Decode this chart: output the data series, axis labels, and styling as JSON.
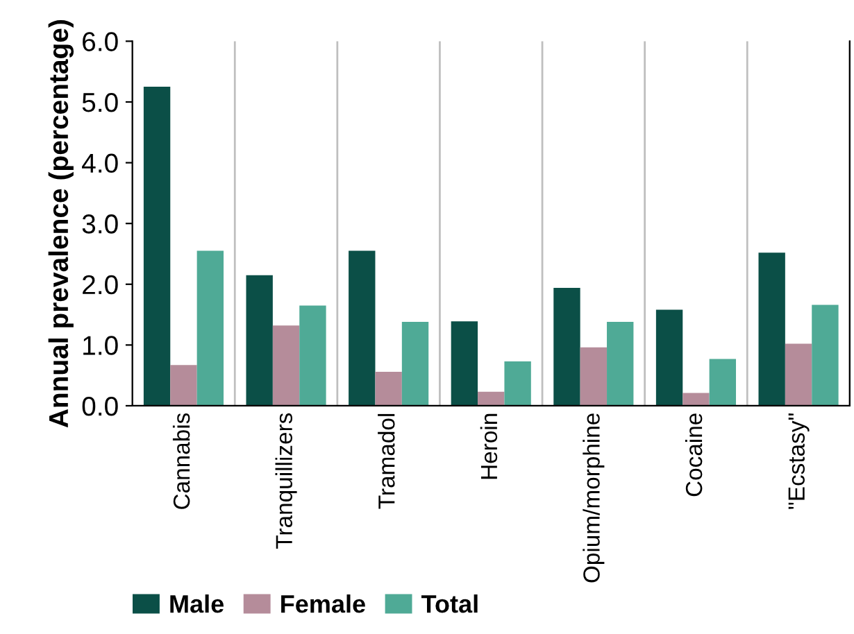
{
  "chart_data": {
    "type": "bar",
    "ylabel": "Annual prevalence (percentage)",
    "categories": [
      "Cannabis",
      "Tranquillizers",
      "Tramadol",
      "Heroin",
      "Opium/morphine",
      "Cocaine",
      "\"Ecstasy\""
    ],
    "series": [
      {
        "name": "Male",
        "color": "#0b4f47",
        "values": [
          5.25,
          2.15,
          2.55,
          1.39,
          1.94,
          1.58,
          2.52
        ]
      },
      {
        "name": "Female",
        "color": "#b58c9a",
        "values": [
          0.67,
          1.32,
          0.56,
          0.23,
          0.96,
          0.21,
          1.02
        ]
      },
      {
        "name": "Total",
        "color": "#4faa96",
        "values": [
          2.55,
          1.65,
          1.38,
          0.73,
          1.38,
          0.77,
          1.66
        ]
      }
    ],
    "ylim": [
      0,
      6
    ],
    "yticks": [
      {
        "value": 0,
        "label": "0.0"
      },
      {
        "value": 1,
        "label": "1.0"
      },
      {
        "value": 2,
        "label": "2.0"
      },
      {
        "value": 3,
        "label": "3.0"
      },
      {
        "value": 4,
        "label": "4.0"
      },
      {
        "value": 5,
        "label": "5.0"
      },
      {
        "value": 6,
        "label": "6.0"
      }
    ],
    "grid": "x",
    "legend": "bottom"
  }
}
